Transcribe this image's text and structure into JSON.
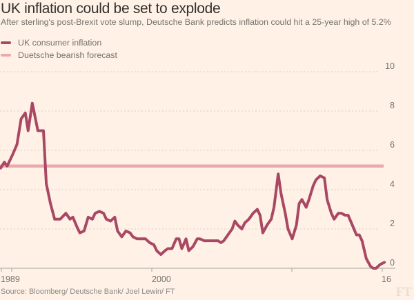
{
  "header": {
    "title": "UK inflation could be set to explode",
    "subtitle": "After sterling's post-Brexit vote slump, Deutsche Bank predicts inflation could hit a 25-year high of 5.2%"
  },
  "legend": [
    {
      "label": "UK consumer inflation",
      "color": "#a94864"
    },
    {
      "label": "Duetsche bearish forecast",
      "color": "#eba8ad"
    }
  ],
  "footer": {
    "source": "Source: Bloomberg/ Deutsche Bank/ Joel Lewin/ FT",
    "logo": "FT"
  },
  "chart_data": {
    "type": "line",
    "title": "UK inflation could be set to explode",
    "xlabel": "",
    "ylabel": "",
    "ylim": [
      0,
      10
    ],
    "xlim": [
      1988.9,
      2016.6
    ],
    "grid": true,
    "legend_position": "top-left",
    "y_ticks": [
      0,
      2,
      4,
      6,
      8,
      10
    ],
    "y_tick_labels": [
      "0",
      "2",
      "4",
      "6",
      "8",
      "10"
    ],
    "x_ticks": [
      {
        "value": 1988.2,
        "label": ""
      },
      {
        "value": 1989.0,
        "label": "1989"
      },
      {
        "value": 2000.0,
        "label": "2000"
      },
      {
        "value": 2010.0,
        "label": ""
      },
      {
        "value": 2016.5,
        "label": "16"
      }
    ],
    "series": [
      {
        "name": "UK consumer inflation",
        "color": "#a94864",
        "x": [
          1989.0,
          1989.3,
          1989.5,
          1989.9,
          1990.2,
          1990.5,
          1990.8,
          1991.0,
          1991.3,
          1991.7,
          1992.1,
          1992.3,
          1992.6,
          1992.9,
          1993.3,
          1993.7,
          1994.0,
          1994.2,
          1994.5,
          1994.7,
          1995.0,
          1995.3,
          1995.6,
          1995.8,
          1996.1,
          1996.4,
          1996.6,
          1996.9,
          1997.2,
          1997.4,
          1997.7,
          1998.0,
          1998.3,
          1998.5,
          1998.8,
          1999.1,
          1999.4,
          1999.7,
          2000.0,
          2000.2,
          2000.5,
          2000.8,
          2001.0,
          2001.3,
          2001.6,
          2001.8,
          2002.0,
          2002.3,
          2002.5,
          2002.8,
          2003.1,
          2003.3,
          2003.6,
          2003.8,
          2004.1,
          2004.3,
          2004.6,
          2004.8,
          2005.0,
          2005.3,
          2005.6,
          2005.8,
          2006.0,
          2006.3,
          2006.5,
          2006.8,
          2007.1,
          2007.4,
          2007.6,
          2007.8,
          2008.1,
          2008.4,
          2008.6,
          2008.9,
          2009.1,
          2009.4,
          2009.6,
          2009.9,
          2010.2,
          2010.4,
          2010.6,
          2010.9,
          2011.1,
          2011.4,
          2011.6,
          2011.9,
          2012.2,
          2012.4,
          2012.7,
          2012.9,
          2013.2,
          2013.4,
          2013.7,
          2013.9,
          2014.2,
          2014.5,
          2014.7,
          2014.9,
          2015.2,
          2015.5,
          2015.7,
          2015.9,
          2016.2,
          2016.5
        ],
        "values": [
          5.1,
          5.4,
          5.2,
          5.8,
          6.3,
          7.6,
          7.9,
          7.0,
          8.4,
          7.0,
          7.0,
          4.3,
          3.3,
          2.5,
          2.5,
          2.8,
          2.5,
          2.6,
          2.1,
          1.8,
          1.9,
          2.6,
          2.5,
          2.8,
          2.9,
          2.8,
          2.5,
          2.4,
          2.6,
          1.9,
          1.6,
          1.9,
          1.8,
          1.6,
          1.5,
          1.5,
          1.5,
          1.3,
          1.2,
          0.9,
          0.7,
          0.9,
          1.0,
          1.0,
          1.5,
          1.5,
          1.0,
          1.5,
          0.9,
          1.1,
          1.5,
          1.5,
          1.4,
          1.4,
          1.4,
          1.4,
          1.4,
          1.3,
          1.4,
          1.7,
          2.0,
          2.4,
          2.2,
          2.0,
          2.3,
          2.5,
          2.8,
          3.0,
          2.7,
          1.8,
          2.2,
          2.5,
          3.1,
          4.8,
          3.8,
          2.8,
          2.0,
          1.5,
          2.2,
          3.3,
          3.5,
          3.1,
          3.5,
          4.2,
          4.5,
          4.7,
          4.6,
          3.5,
          2.8,
          2.5,
          2.8,
          2.8,
          2.7,
          2.7,
          2.2,
          1.7,
          1.7,
          1.4,
          0.5,
          0.1,
          0.0,
          0.0,
          0.2,
          0.3
        ]
      },
      {
        "name": "Duetsche bearish forecast",
        "color": "#eba8ad",
        "x": [
          1988.9,
          2016.6
        ],
        "values": [
          5.2,
          5.2
        ]
      }
    ]
  }
}
